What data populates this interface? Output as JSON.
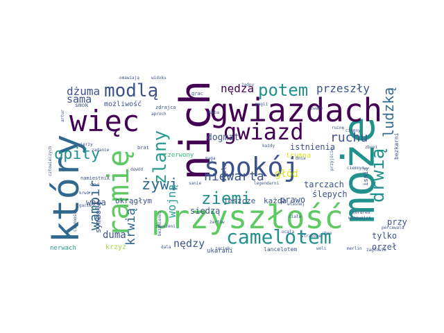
{
  "wordcloud": {
    "palette": {
      "dark_purple": "#440154",
      "indigo": "#3b528b",
      "blue": "#31688e",
      "teal": "#21918c",
      "sea_green": "#2a9d8f",
      "green": "#35b779",
      "light_green": "#5ec962",
      "lime": "#a0da39",
      "yellow": "#d8e219",
      "pale": "#cde11d"
    },
    "words": {
      "moze": "może",
      "nich": "nich",
      "gwiazdach": "gwiazdach",
      "przyszlosc": "przyszłość",
      "ktory": "który",
      "ramie": "ramię",
      "wiec": "więc",
      "spokoj": "spokój",
      "gwiazd": "gwiazd",
      "camelotem": "camelotem",
      "modla": "modlą",
      "potem": "potem",
      "ziemi": "ziemi",
      "drwia": "drwią",
      "zlany": "zlany",
      "opity": "opity",
      "zywi": "żywi",
      "wampir": "wampir",
      "ludzka": "ludzką",
      "niewarta": "niewarta",
      "ruchu": "ruchu",
      "krwia": "krwią",
      "wojna": "wojną",
      "przeszly": "przeszły",
      "nedza": "nędza",
      "dzuma": "dżuma",
      "sama": "sama",
      "nedzy": "nędzy",
      "duma": "duma",
      "glod": "głód",
      "dogmat": "dogmat",
      "istnienia": "istnienia",
      "tarczach": "tarczach",
      "slepych": "ślepych",
      "przy": "przy",
      "tylko": "tylko",
      "orzel": "orzeł",
      "siedza": "siedzą",
      "prawo": "prawo",
      "jeszcze": "jeszcze",
      "kazda": "każda",
      "woła": "woła",
      "okragłym": "okrągłym",
      "symbole": "symbole",
      "mozliwosc": "możliwość",
      "trumna": "trumna",
      "czerwony": "czerwony",
      "krzyz": "krzyż",
      "nerwach": "nerwach",
      "lancelotem": "lancelotem",
      "ukarani": "ukarani",
      "stole": "stole",
      "isnia": "isnią",
      "bezkarni": "bezkarni",
      "smok": "smok",
      "zdrajca": "zdrajca",
      "aproch": "aproch",
      "grac": "grac",
      "widoku": "widoku",
      "omawiaja": "omawiają",
      "artur": "artur",
      "wierzy": "wierzy",
      "zadanie": "zadanie",
      "brat": "brat",
      "namiestnik": "namiestnik",
      "drwi": "drwi",
      "gacie": "gacie",
      "krwi": "krwi",
      "czlowieczych": "człowieczych",
      "ciemnosci": "ciemności",
      "bezimienni": "bezimienni",
      "zmuszeni": "zmuszeni",
      "dala": "dala",
      "zaciek": "zaciek",
      "ocala": "ocala",
      "woli": "woli",
      "merlin": "merlin",
      "przyjscie": "przyjście",
      "sanie": "sanie",
      "zartow": "żartów",
      "legendarni": "legendarni",
      "wlasnej": "własnej",
      "percewala": "percewala",
      "stracone": "stracone",
      "ruine": "ruinę",
      "ciemny": "ciemny",
      "zbroi": "zbroi",
      "ciemnym": "ciemnym",
      "mordred": "mordred",
      "winowajca": "winowajca",
      "zadny": "żadny",
      "nieba": "nieba",
      "magii": "magii",
      "kazdy": "każdy",
      "dnia": "dnia",
      "czwaty": "czwaty",
      "chce": "chce",
      "zaglowie": "żagłowie",
      "maga": "maga",
      "ciala": "ciała",
      "dowod": "dowód"
    }
  }
}
